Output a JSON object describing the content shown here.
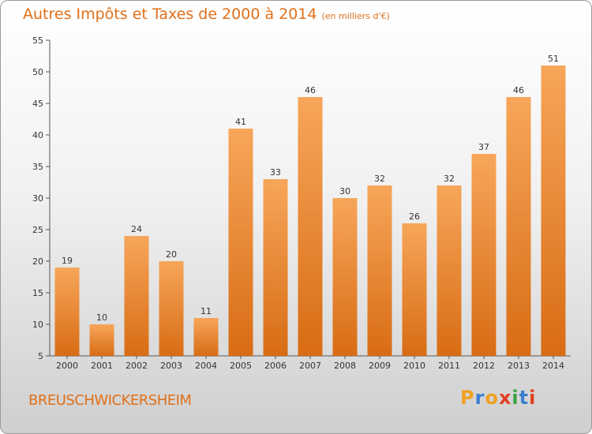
{
  "chart_data": {
    "type": "bar",
    "title": "Autres Impôts et Taxes de 2000 à 2014",
    "unit_label": "(en milliers d'€)",
    "categories": [
      "2000",
      "2001",
      "2002",
      "2003",
      "2004",
      "2005",
      "2006",
      "2007",
      "2008",
      "2009",
      "2010",
      "2011",
      "2012",
      "2013",
      "2014"
    ],
    "values": [
      19,
      10,
      24,
      20,
      11,
      41,
      33,
      46,
      30,
      32,
      26,
      32,
      37,
      46,
      51
    ],
    "ylim": [
      5,
      55
    ],
    "yticks": [
      5,
      10,
      15,
      20,
      25,
      30,
      35,
      40,
      45,
      50,
      55
    ],
    "grid": false,
    "bar_color": "#f0882e"
  },
  "commune": "BREUSCHWICKERSHEIM",
  "logo": {
    "letters": [
      "P",
      "r",
      "o",
      "x",
      "i",
      "t",
      "i"
    ],
    "colors": [
      "#f0a020",
      "#3a7fd0",
      "#f0a020",
      "#e04020",
      "#3aa040",
      "#3a7fd0",
      "#e04020"
    ]
  }
}
